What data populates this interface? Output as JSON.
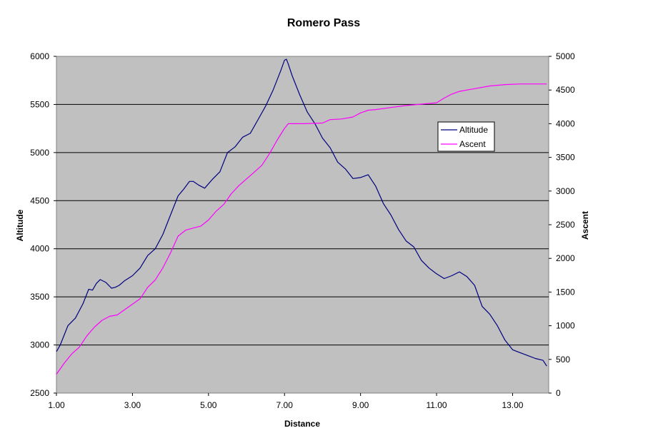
{
  "chart_data": {
    "type": "line",
    "title": "Romero Pass",
    "xlabel": "Distance",
    "ylabel_left": "Altitude",
    "ylabel_right": "Ascent",
    "xlim": [
      1.0,
      13.95
    ],
    "ylim_left": [
      2500,
      6000
    ],
    "ylim_right": [
      0,
      5000
    ],
    "x_ticks": [
      "1.00",
      "3.00",
      "5.00",
      "7.00",
      "9.00",
      "11.00",
      "13.00"
    ],
    "x_tick_values": [
      1,
      3,
      5,
      7,
      9,
      11,
      13
    ],
    "y_left_ticks": [
      "2500",
      "3000",
      "3500",
      "4000",
      "4500",
      "5000",
      "5500",
      "6000"
    ],
    "y_left_tick_values": [
      2500,
      3000,
      3500,
      4000,
      4500,
      5000,
      5500,
      6000
    ],
    "y_right_ticks": [
      "0",
      "500",
      "1000",
      "1500",
      "2000",
      "2500",
      "3000",
      "3500",
      "4000",
      "4500",
      "5000"
    ],
    "y_right_tick_values": [
      0,
      500,
      1000,
      1500,
      2000,
      2500,
      3000,
      3500,
      4000,
      4500,
      5000
    ],
    "grid": "horizontal",
    "legend_position": "right",
    "plot_background": "#c0c0c0",
    "series": [
      {
        "name": "Altitude",
        "axis": "left",
        "color": "#000080",
        "x": [
          1.0,
          1.1,
          1.3,
          1.5,
          1.7,
          1.85,
          1.95,
          2.05,
          2.15,
          2.3,
          2.45,
          2.55,
          2.65,
          2.8,
          3.0,
          3.2,
          3.4,
          3.6,
          3.8,
          4.0,
          4.2,
          4.35,
          4.5,
          4.6,
          4.75,
          4.9,
          5.1,
          5.3,
          5.5,
          5.7,
          5.9,
          6.1,
          6.3,
          6.5,
          6.7,
          6.9,
          7.0,
          7.05,
          7.1,
          7.2,
          7.4,
          7.6,
          7.8,
          8.0,
          8.2,
          8.4,
          8.6,
          8.8,
          9.0,
          9.2,
          9.4,
          9.6,
          9.8,
          10.0,
          10.2,
          10.4,
          10.6,
          10.8,
          11.0,
          11.2,
          11.4,
          11.6,
          11.8,
          12.0,
          12.2,
          12.4,
          12.6,
          12.8,
          13.0,
          13.2,
          13.4,
          13.6,
          13.8,
          13.9
        ],
        "values": [
          2930,
          3000,
          3200,
          3280,
          3430,
          3580,
          3570,
          3640,
          3680,
          3650,
          3590,
          3600,
          3620,
          3670,
          3720,
          3800,
          3930,
          4000,
          4150,
          4350,
          4550,
          4620,
          4700,
          4700,
          4660,
          4630,
          4720,
          4800,
          5000,
          5060,
          5160,
          5200,
          5340,
          5480,
          5650,
          5850,
          5960,
          5970,
          5920,
          5800,
          5600,
          5420,
          5300,
          5150,
          5050,
          4900,
          4830,
          4730,
          4740,
          4770,
          4650,
          4470,
          4350,
          4200,
          4080,
          4020,
          3880,
          3800,
          3740,
          3690,
          3720,
          3760,
          3710,
          3620,
          3400,
          3320,
          3200,
          3050,
          2950,
          2920,
          2890,
          2860,
          2840,
          2780
        ]
      },
      {
        "name": "Ascent",
        "axis": "right",
        "color": "#ff00ff",
        "x": [
          1.0,
          1.2,
          1.4,
          1.6,
          1.8,
          2.0,
          2.2,
          2.4,
          2.6,
          2.8,
          3.0,
          3.2,
          3.4,
          3.6,
          3.8,
          4.0,
          4.2,
          4.4,
          4.6,
          4.8,
          5.0,
          5.2,
          5.4,
          5.6,
          5.8,
          6.0,
          6.2,
          6.4,
          6.6,
          6.8,
          7.0,
          7.1,
          7.5,
          8.0,
          8.2,
          8.5,
          8.8,
          9.0,
          9.2,
          9.4,
          9.8,
          10.2,
          10.6,
          11.0,
          11.2,
          11.4,
          11.6,
          11.8,
          12.0,
          12.4,
          12.8,
          13.2,
          13.6,
          13.9
        ],
        "values": [
          280,
          440,
          580,
          680,
          850,
          980,
          1080,
          1140,
          1160,
          1240,
          1320,
          1400,
          1570,
          1680,
          1860,
          2080,
          2330,
          2420,
          2450,
          2480,
          2570,
          2700,
          2800,
          2960,
          3080,
          3180,
          3280,
          3380,
          3550,
          3750,
          3930,
          4000,
          4000,
          4010,
          4060,
          4070,
          4100,
          4160,
          4200,
          4210,
          4240,
          4270,
          4290,
          4310,
          4380,
          4440,
          4480,
          4500,
          4520,
          4560,
          4580,
          4590,
          4590,
          4590
        ]
      }
    ]
  }
}
